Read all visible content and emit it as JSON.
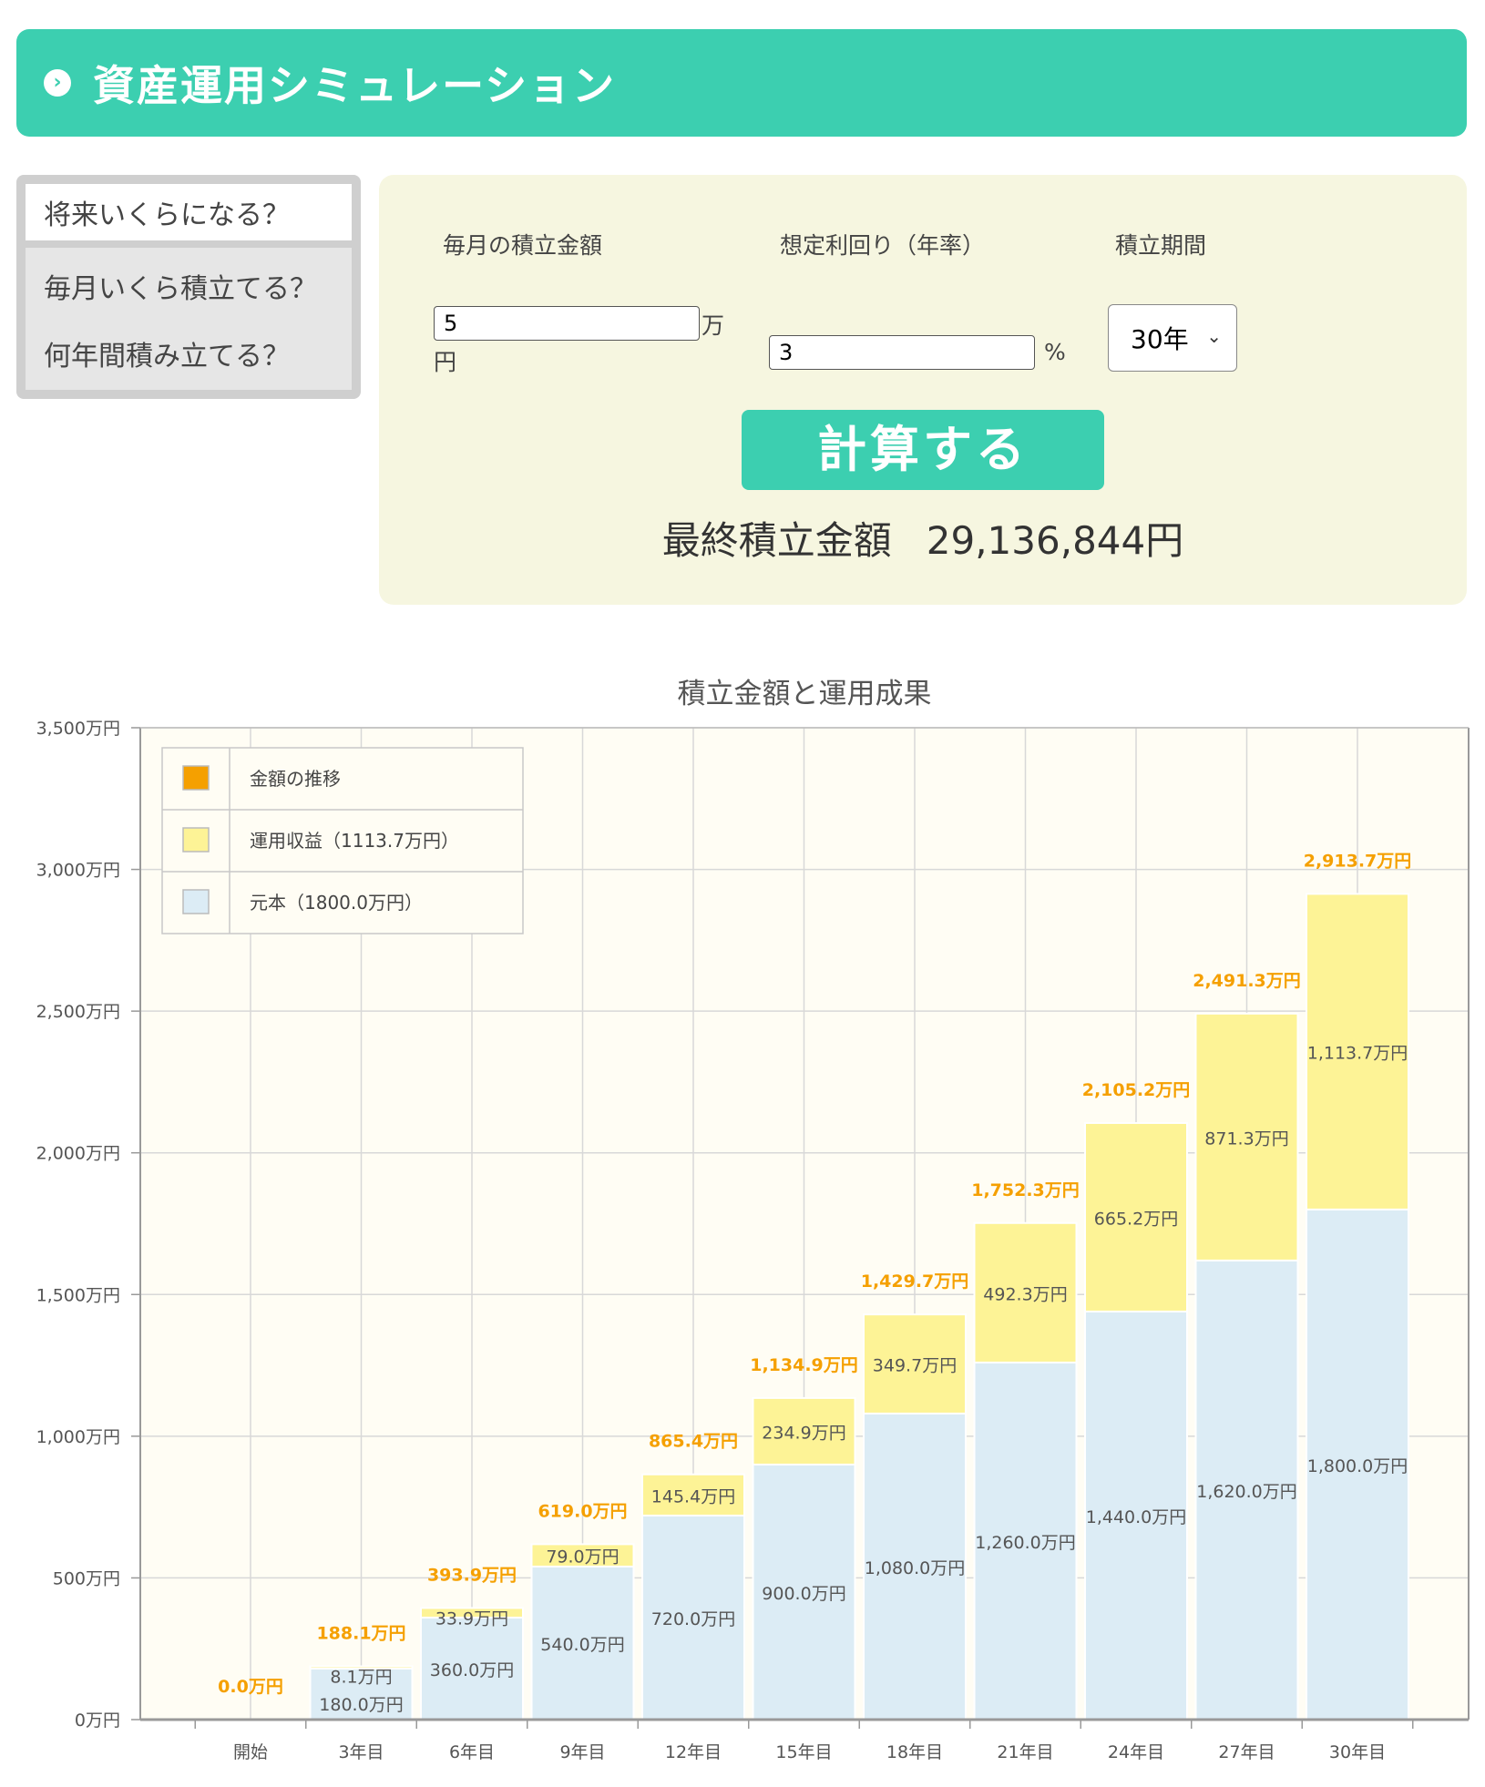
{
  "header": {
    "title": "資産運用シミュレーション",
    "icon": "chevron-right-circle-icon"
  },
  "tabs": [
    {
      "label": "将来いくらになる？",
      "active": true
    },
    {
      "label": "毎月いくら積立てる？",
      "active": false
    },
    {
      "label": "何年間積み立てる？",
      "active": false
    }
  ],
  "form": {
    "monthly_label": "毎月の積立金額",
    "rate_label": "想定利回り（年率）",
    "period_label": "積立期間",
    "monthly_value": "5",
    "monthly_unit_1": "万",
    "monthly_unit_2": "円",
    "rate_value": "3",
    "rate_unit": "%",
    "period_value": "30年",
    "calc_label": "計算する",
    "result_label": "最終積立金額",
    "result_value": "29,136,844円"
  },
  "chart_data": {
    "type": "bar",
    "stacked": true,
    "title": "積立金額と運用成果",
    "categories": [
      "開始",
      "3年目",
      "6年目",
      "9年目",
      "12年目",
      "15年目",
      "18年目",
      "21年目",
      "24年目",
      "27年目",
      "30年目"
    ],
    "series": [
      {
        "name": "元本（1800.0万円）",
        "color": "#dcecf5",
        "values": [
          0,
          180.0,
          360.0,
          540.0,
          720.0,
          900.0,
          1080.0,
          1260.0,
          1440.0,
          1620.0,
          1800.0
        ],
        "labels": [
          "",
          "180.0万円",
          "360.0万円",
          "540.0万円",
          "720.0万円",
          "900.0万円",
          "1,080.0万円",
          "1,260.0万円",
          "1,440.0万円",
          "1,620.0万円",
          "1,800.0万円"
        ]
      },
      {
        "name": "運用収益（1113.7万円）",
        "color": "#fdf396",
        "values": [
          0,
          8.1,
          33.9,
          79.0,
          145.4,
          234.9,
          349.7,
          492.3,
          665.2,
          871.3,
          1113.7
        ],
        "labels": [
          "",
          "8.1万円",
          "33.9万円",
          "79.0万円",
          "145.4万円",
          "234.9万円",
          "349.7万円",
          "492.3万円",
          "665.2万円",
          "871.3万円",
          "1,113.7万円"
        ]
      }
    ],
    "totals": {
      "name": "金額の推移",
      "color": "#f5a000",
      "labels": [
        "0.0万円",
        "188.1万円",
        "393.9万円",
        "619.0万円",
        "865.4万円",
        "1,134.9万円",
        "1,429.7万円",
        "1,752.3万円",
        "2,105.2万円",
        "2,491.3万円",
        "2,913.7万円"
      ]
    },
    "ylim": [
      0,
      3500
    ],
    "yticks": [
      {
        "v": 0,
        "label": "0万円"
      },
      {
        "v": 500,
        "label": "500万円"
      },
      {
        "v": 1000,
        "label": "1,000万円"
      },
      {
        "v": 1500,
        "label": "1,500万円"
      },
      {
        "v": 2000,
        "label": "2,000万円"
      },
      {
        "v": 2500,
        "label": "2,500万円"
      },
      {
        "v": 3000,
        "label": "3,000万円"
      },
      {
        "v": 3500,
        "label": "3,500万円"
      }
    ],
    "legend_position": "top-left",
    "grid": true
  }
}
